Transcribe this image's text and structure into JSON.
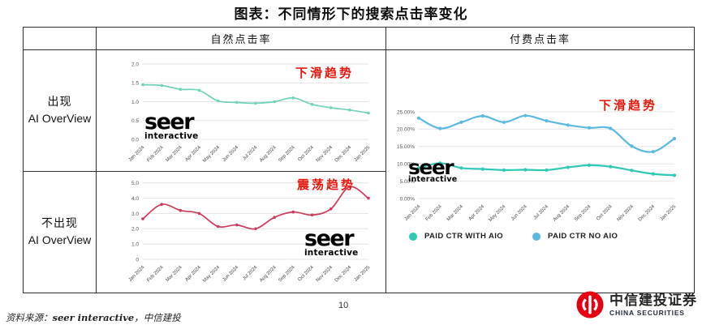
{
  "title": "图表：不同情形下的搜索点击率变化",
  "table": {
    "col_headers": {
      "organic": "自然点击率",
      "paid": "付费点击率"
    },
    "rows": {
      "with_aio": {
        "line1": "出现",
        "line2": "AI OverView"
      },
      "no_aio": {
        "line1": "不出现",
        "line2": "AI OverView"
      }
    }
  },
  "annotations": {
    "decline": "下滑趋势",
    "oscillate": "震荡趋势"
  },
  "watermark": {
    "line1": "seer",
    "line2": "interactive"
  },
  "chart_data": [
    {
      "type": "line",
      "title": "自然点击率 - 出现 AI OverView",
      "categories": [
        "Jan 2024",
        "Feb 2024",
        "Mar 2024",
        "Apr 2024",
        "May 2024",
        "Jun 2024",
        "Jul 2024",
        "Aug 2024",
        "Sep 2024",
        "Oct 2024",
        "Nov 2024",
        "Dec 2024",
        "Jan 2025"
      ],
      "series": [
        {
          "name": "",
          "color": "#6fd2b9",
          "values": [
            1.45,
            1.43,
            1.33,
            1.3,
            1.02,
            0.98,
            0.96,
            1.0,
            1.1,
            0.93,
            0.84,
            0.78,
            0.7
          ]
        }
      ],
      "ylim": [
        0,
        2
      ],
      "yticks": [
        0,
        0.5,
        1,
        1.5,
        2
      ],
      "ytick_labels": [
        "0.0",
        "0.5",
        "1.0",
        "1.5",
        "2.0"
      ],
      "annotation": "下滑趋势",
      "grid": true,
      "legend": false
    },
    {
      "type": "line",
      "title": "自然点击率 - 不出现 AI OverView",
      "categories": [
        "Jan 2024",
        "Feb 2024",
        "Mar 2024",
        "Apr 2024",
        "May 2024",
        "Jun 2024",
        "Jul 2024",
        "Aug 2024",
        "Sep 2024",
        "Oct 2024",
        "Nov 2024",
        "Dec 2024",
        "Jan 2025"
      ],
      "series": [
        {
          "name": "",
          "color": "#cd3a5b",
          "values": [
            2.65,
            3.6,
            3.2,
            3.0,
            2.15,
            2.25,
            2.0,
            2.75,
            3.1,
            2.9,
            3.3,
            4.75,
            4.0
          ]
        }
      ],
      "ylim": [
        0,
        5.2
      ],
      "yticks": [
        0,
        1,
        2,
        3,
        4,
        5
      ],
      "ytick_labels": [
        "0",
        "1.0",
        "2.0",
        "3.0",
        "4.0",
        "5.0"
      ],
      "annotation": "震荡趋势",
      "grid": true,
      "legend": false
    },
    {
      "type": "line",
      "title": "付费点击率",
      "categories": [
        "Jan 2024",
        "Feb 2024",
        "Mar 2024",
        "Apr 2024",
        "May 2024",
        "Jun 2024",
        "Jul 2024",
        "Aug 2024",
        "Sep 2024",
        "Oct 2024",
        "Nov 2024",
        "Dec 2024",
        "Jan 2025"
      ],
      "series": [
        {
          "name": "PAID CTR WITH AIO",
          "color": "#2fc9b6",
          "values": [
            8.8,
            10.2,
            8.8,
            8.5,
            8.2,
            8.3,
            8.2,
            9.0,
            9.6,
            9.2,
            8.1,
            7.1,
            6.7
          ]
        },
        {
          "name": "PAID CTR NO AIO",
          "color": "#58b9e1",
          "values": [
            23.2,
            20.2,
            22.0,
            23.8,
            22.0,
            23.9,
            22.4,
            21.2,
            20.4,
            20.2,
            15.1,
            13.5,
            17.3
          ]
        }
      ],
      "ylim": [
        0,
        25
      ],
      "yticks": [
        0,
        5,
        10,
        15,
        20,
        25
      ],
      "ytick_labels": [
        "0.00%",
        "5.00%",
        "10.00%",
        "15.00%",
        "20.00%",
        "25.00%"
      ],
      "annotation": "下滑趋势",
      "grid": true,
      "legend": true,
      "legend_position": "bottom"
    }
  ],
  "footer": {
    "source_prefix": "资料来源：",
    "source_bold": "seer interactive",
    "source_suffix": "，中信建投",
    "page_number": "10",
    "logo_cn": "中信建投证券",
    "logo_en": "CHINA SECURITIES",
    "logo_red": "#e60012"
  }
}
